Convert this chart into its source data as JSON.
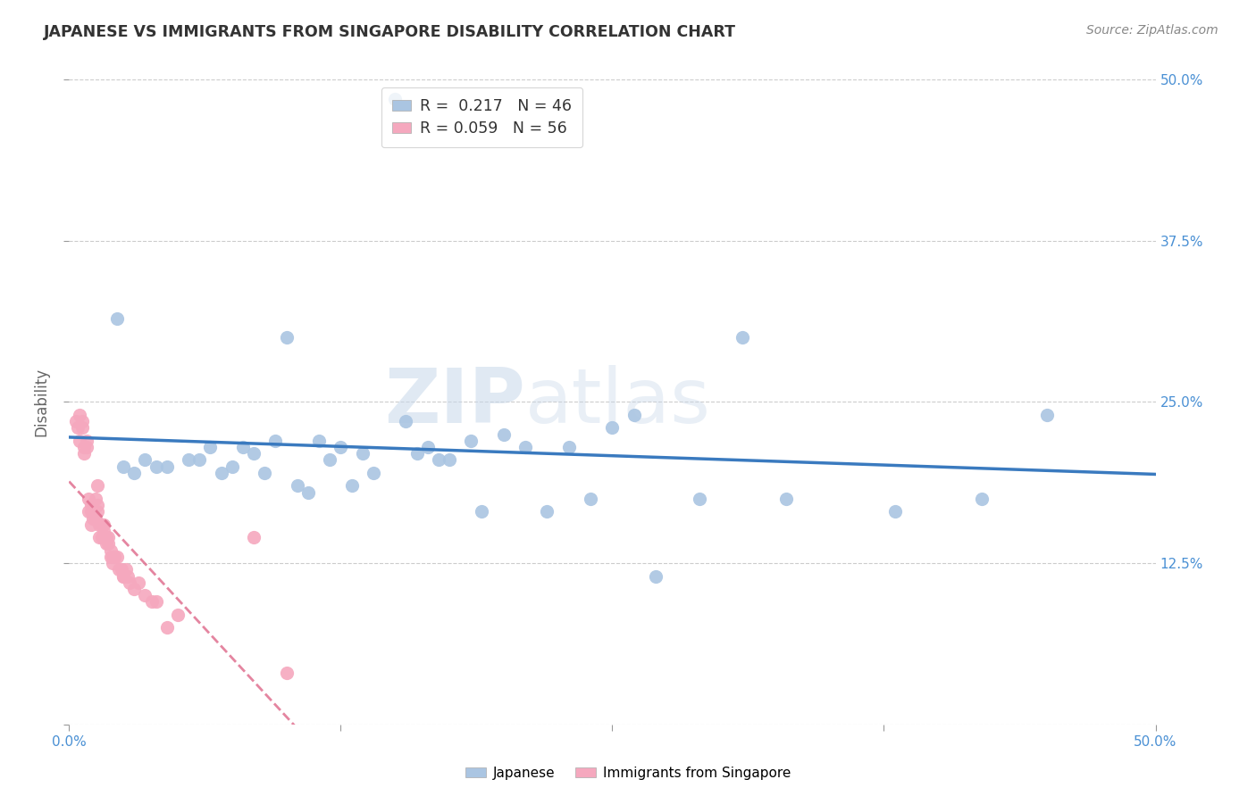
{
  "title": "JAPANESE VS IMMIGRANTS FROM SINGAPORE DISABILITY CORRELATION CHART",
  "source": "Source: ZipAtlas.com",
  "ylabel": "Disability",
  "xlim": [
    0.0,
    0.5
  ],
  "ylim": [
    0.0,
    0.5
  ],
  "japanese_R": 0.217,
  "japanese_N": 46,
  "singapore_R": 0.059,
  "singapore_N": 56,
  "japanese_color": "#aac5e2",
  "singapore_color": "#f5a8be",
  "japanese_line_color": "#3a7abf",
  "singapore_line_color": "#e07090",
  "watermark_zip": "ZIP",
  "watermark_atlas": "atlas",
  "japanese_points_x": [
    0.15,
    0.022,
    0.1,
    0.08,
    0.115,
    0.025,
    0.03,
    0.035,
    0.04,
    0.045,
    0.055,
    0.06,
    0.065,
    0.07,
    0.075,
    0.085,
    0.09,
    0.095,
    0.105,
    0.11,
    0.12,
    0.125,
    0.13,
    0.135,
    0.14,
    0.155,
    0.16,
    0.165,
    0.17,
    0.175,
    0.185,
    0.19,
    0.2,
    0.21,
    0.22,
    0.23,
    0.24,
    0.25,
    0.26,
    0.27,
    0.29,
    0.31,
    0.33,
    0.38,
    0.42,
    0.45
  ],
  "japanese_points_y": [
    0.485,
    0.315,
    0.3,
    0.215,
    0.22,
    0.2,
    0.195,
    0.205,
    0.2,
    0.2,
    0.205,
    0.205,
    0.215,
    0.195,
    0.2,
    0.21,
    0.195,
    0.22,
    0.185,
    0.18,
    0.205,
    0.215,
    0.185,
    0.21,
    0.195,
    0.235,
    0.21,
    0.215,
    0.205,
    0.205,
    0.22,
    0.165,
    0.225,
    0.215,
    0.165,
    0.215,
    0.175,
    0.23,
    0.24,
    0.115,
    0.175,
    0.3,
    0.175,
    0.165,
    0.175,
    0.24
  ],
  "singapore_points_x": [
    0.003,
    0.004,
    0.005,
    0.005,
    0.006,
    0.006,
    0.007,
    0.007,
    0.008,
    0.008,
    0.009,
    0.009,
    0.01,
    0.01,
    0.01,
    0.011,
    0.011,
    0.012,
    0.012,
    0.013,
    0.013,
    0.013,
    0.014,
    0.014,
    0.015,
    0.015,
    0.015,
    0.016,
    0.016,
    0.017,
    0.017,
    0.018,
    0.018,
    0.019,
    0.019,
    0.02,
    0.02,
    0.021,
    0.021,
    0.022,
    0.023,
    0.024,
    0.025,
    0.025,
    0.026,
    0.027,
    0.028,
    0.03,
    0.032,
    0.035,
    0.038,
    0.04,
    0.045,
    0.05,
    0.085,
    0.1
  ],
  "singapore_points_y": [
    0.235,
    0.23,
    0.22,
    0.24,
    0.23,
    0.235,
    0.21,
    0.215,
    0.22,
    0.215,
    0.165,
    0.175,
    0.17,
    0.165,
    0.155,
    0.16,
    0.165,
    0.175,
    0.16,
    0.185,
    0.165,
    0.17,
    0.155,
    0.145,
    0.155,
    0.145,
    0.155,
    0.15,
    0.155,
    0.14,
    0.145,
    0.14,
    0.145,
    0.13,
    0.135,
    0.13,
    0.125,
    0.13,
    0.13,
    0.13,
    0.12,
    0.12,
    0.115,
    0.115,
    0.12,
    0.115,
    0.11,
    0.105,
    0.11,
    0.1,
    0.095,
    0.095,
    0.075,
    0.085,
    0.145,
    0.04
  ]
}
